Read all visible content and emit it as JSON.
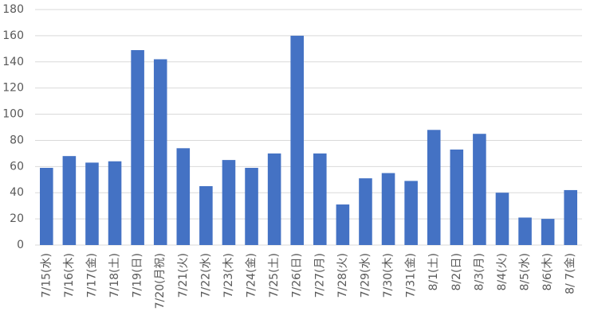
{
  "chart_data": {
    "type": "bar",
    "categories": [
      "7/15(水)",
      "7/16(木)",
      "7/17(金)",
      "7/18(土)",
      "7/19(日)",
      "7/20(月祝)",
      "7/21(火)",
      "7/22(水)",
      "7/23(木)",
      "7/24(金)",
      "7/25(土)",
      "7/26(日)",
      "7/27(月)",
      "7/28(火)",
      "7/29(水)",
      "7/30(木)",
      "7/31(金)",
      "8/1(土)",
      "8/2(日)",
      "8/3(月)",
      "8/4(火)",
      "8/5(水)",
      "8/6(木)",
      "8/ 7(金)"
    ],
    "values": [
      59,
      68,
      63,
      64,
      149,
      142,
      74,
      45,
      65,
      59,
      70,
      160,
      70,
      31,
      51,
      55,
      49,
      88,
      73,
      85,
      40,
      21,
      20,
      42
    ],
    "color": "#4472c4",
    "ylim": [
      0,
      180
    ],
    "yticks": [
      0,
      20,
      40,
      60,
      80,
      100,
      120,
      140,
      160,
      180
    ],
    "grid": true
  }
}
